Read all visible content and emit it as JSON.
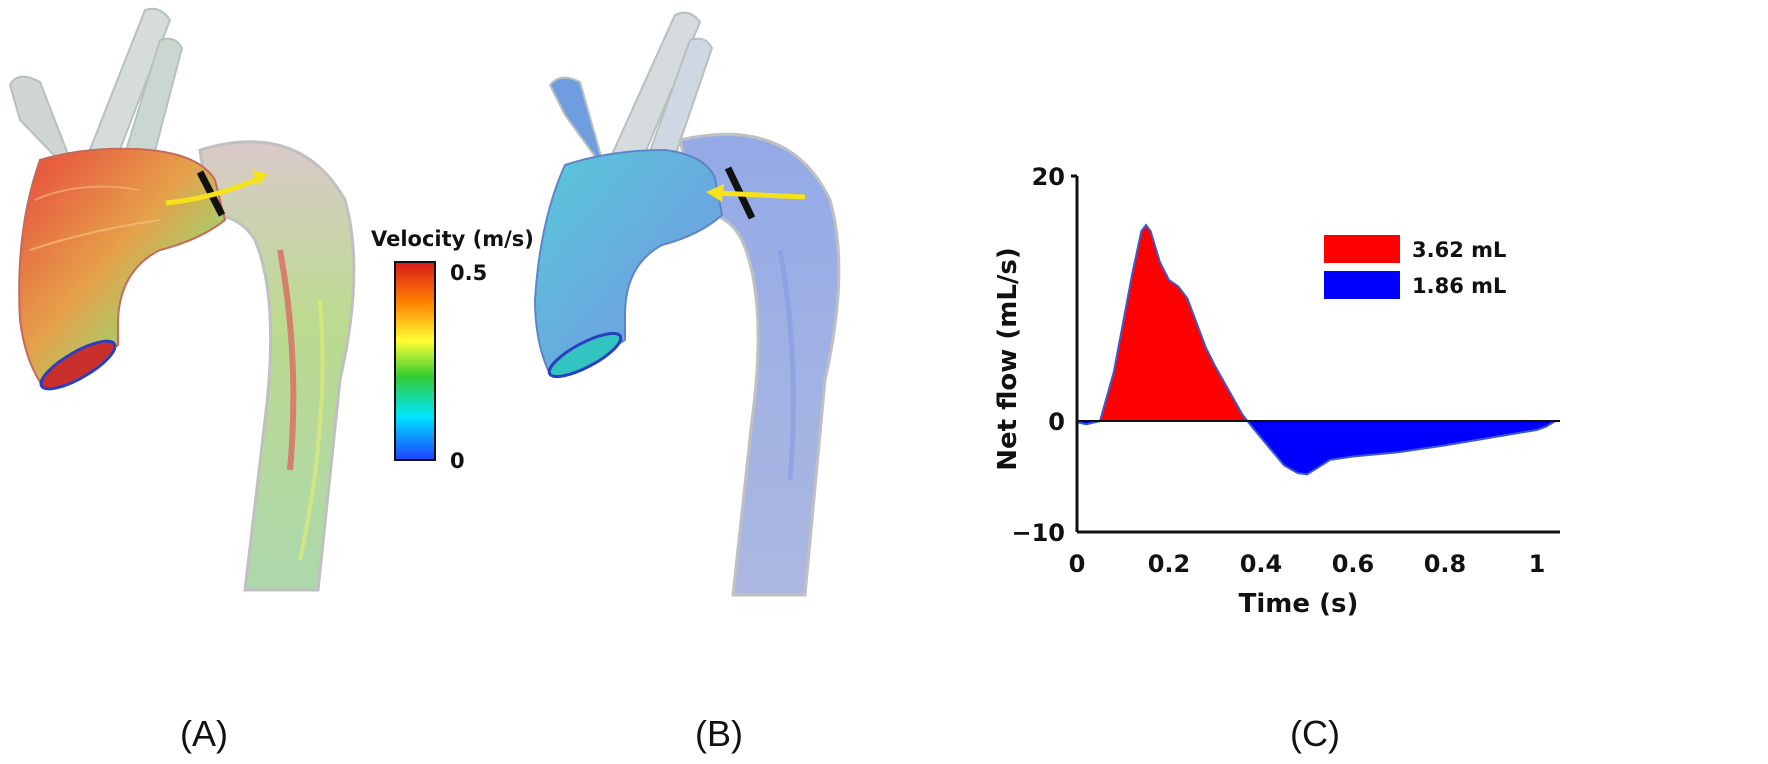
{
  "panels": {
    "a_label": "(A)",
    "b_label": "(B)",
    "c_label": "(C)"
  },
  "colorbar": {
    "title": "Velocity (m/s)",
    "max_label": "0.5",
    "min_label": "0",
    "colors": [
      "#d7191c",
      "#ff7f00",
      "#ffff33",
      "#33cc33",
      "#00e5ff",
      "#1e40ff"
    ]
  },
  "chart_data": {
    "type": "area",
    "title": "",
    "xlabel": "Time (s)",
    "ylabel": "Net flow (mL/s)",
    "xlim": [
      0,
      1.05
    ],
    "ylim": [
      -10,
      20
    ],
    "xticks": [
      "0",
      "0.2",
      "0.4",
      "0.6",
      "0.8",
      "1"
    ],
    "yticks": [
      "20",
      "0",
      "−10"
    ],
    "x": [
      0.0,
      0.02,
      0.05,
      0.08,
      0.1,
      0.12,
      0.14,
      0.15,
      0.16,
      0.18,
      0.2,
      0.22,
      0.24,
      0.26,
      0.28,
      0.3,
      0.33,
      0.36,
      0.38,
      0.42,
      0.45,
      0.48,
      0.5,
      0.52,
      0.55,
      0.6,
      0.7,
      0.8,
      0.9,
      1.0,
      1.02,
      1.04
    ],
    "values": [
      -0.1,
      -0.3,
      0.0,
      4.0,
      8.0,
      12.0,
      15.5,
      16.0,
      15.5,
      13.0,
      11.5,
      11.0,
      10.0,
      8.0,
      6.0,
      4.5,
      2.5,
      0.5,
      -0.5,
      -2.5,
      -4.0,
      -4.7,
      -4.8,
      -4.3,
      -3.5,
      -3.2,
      -2.8,
      -2.2,
      -1.5,
      -0.8,
      -0.5,
      0.0
    ],
    "legend": [
      {
        "label": "3.62 mL",
        "color": "#ff0000"
      },
      {
        "label": "1.86 mL",
        "color": "#0000ff"
      }
    ],
    "legend_position": "top-right",
    "fill_positive": "#ff0000",
    "fill_negative": "#0000ff",
    "outline": "#3a5bd0",
    "grid": false
  }
}
